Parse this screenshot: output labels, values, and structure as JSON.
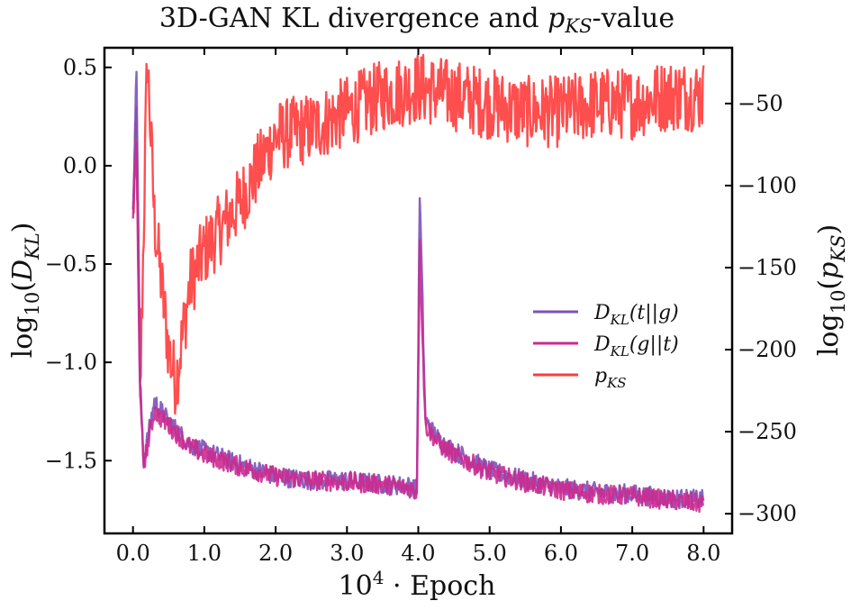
{
  "chart_data": {
    "type": "line",
    "title": "3D-GAN KL divergence and p_KS-value",
    "xlabel": "10^4 · Epoch",
    "ylabel_left": "log10(D_KL)",
    "ylabel_right": "log10(p_KS)",
    "xlim": [
      -0.4,
      8.4
    ],
    "ylim_left": [
      -1.87,
      0.6
    ],
    "ylim_right": [
      -312,
      -16
    ],
    "xticks": [
      "0.0",
      "1.0",
      "2.0",
      "3.0",
      "4.0",
      "5.0",
      "6.0",
      "7.0",
      "8.0"
    ],
    "yticks_left": [
      "0.5",
      "0.0",
      "−0.5",
      "−1.0",
      "−1.5"
    ],
    "yticks_right": [
      "−50",
      "−100",
      "−150",
      "−200",
      "−250",
      "−300"
    ],
    "legend_position": "center-right",
    "grid": false,
    "series": [
      {
        "name": "D_KL(t||g)",
        "axis": "left",
        "color": "#7b52b9",
        "x": [
          0.0,
          0.05,
          0.1,
          0.15,
          0.3,
          0.5,
          0.8,
          1.0,
          1.5,
          2.0,
          2.5,
          3.0,
          3.5,
          3.9,
          3.98,
          4.02,
          4.1,
          4.3,
          4.5,
          5.0,
          5.5,
          6.0,
          6.5,
          7.0,
          7.5,
          8.0
        ],
        "values": [
          -0.2,
          0.48,
          -1.1,
          -1.5,
          -1.2,
          -1.3,
          -1.42,
          -1.45,
          -1.52,
          -1.58,
          -1.6,
          -1.6,
          -1.62,
          -1.63,
          -1.65,
          -0.14,
          -1.3,
          -1.4,
          -1.45,
          -1.55,
          -1.6,
          -1.64,
          -1.66,
          -1.67,
          -1.69,
          -1.7
        ]
      },
      {
        "name": "D_KL(g||t)",
        "axis": "left",
        "color": "#cc2a8f",
        "x": [
          0.0,
          0.05,
          0.1,
          0.15,
          0.3,
          0.5,
          0.8,
          1.0,
          1.5,
          2.0,
          2.5,
          3.0,
          3.5,
          3.9,
          3.98,
          4.02,
          4.1,
          4.3,
          4.5,
          5.0,
          5.5,
          6.0,
          6.5,
          7.0,
          7.5,
          8.0
        ],
        "values": [
          -0.25,
          0.1,
          -1.2,
          -1.52,
          -1.25,
          -1.32,
          -1.43,
          -1.47,
          -1.53,
          -1.58,
          -1.6,
          -1.61,
          -1.62,
          -1.64,
          -1.66,
          -0.42,
          -1.32,
          -1.42,
          -1.47,
          -1.56,
          -1.61,
          -1.65,
          -1.67,
          -1.68,
          -1.7,
          -1.72
        ]
      },
      {
        "name": "p_KS",
        "axis": "right",
        "color": "#ff3b3b",
        "x": [
          0.0,
          0.05,
          0.1,
          0.2,
          0.3,
          0.5,
          0.6,
          0.8,
          1.0,
          1.5,
          2.0,
          2.5,
          3.0,
          3.5,
          4.0,
          4.5,
          5.0,
          5.5,
          6.0,
          6.5,
          7.0,
          7.5,
          8.0
        ],
        "values": [
          -120,
          -60,
          -230,
          -20,
          -120,
          -200,
          -220,
          -160,
          -140,
          -110,
          -70,
          -65,
          -55,
          -45,
          -40,
          -45,
          -50,
          -55,
          -55,
          -50,
          -50,
          -45,
          -45
        ]
      }
    ]
  }
}
